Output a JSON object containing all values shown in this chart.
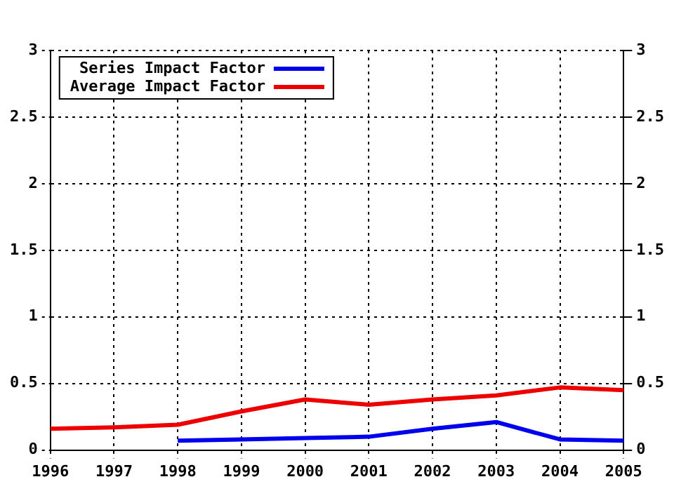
{
  "chart_data": {
    "type": "line",
    "series": [
      {
        "name": "Series Impact Factor",
        "color": "#0000ee",
        "x": [
          1998,
          1999,
          2000,
          2001,
          2002,
          2003,
          2004,
          2005
        ],
        "values": [
          0.07,
          0.08,
          0.09,
          0.1,
          0.16,
          0.21,
          0.08,
          0.07
        ]
      },
      {
        "name": "Average Impact Factor",
        "color": "#ee0000",
        "x": [
          1996,
          1997,
          1998,
          1999,
          2000,
          2001,
          2002,
          2003,
          2004,
          2005
        ],
        "values": [
          0.16,
          0.17,
          0.19,
          0.29,
          0.38,
          0.34,
          0.38,
          0.41,
          0.47,
          0.45
        ]
      }
    ],
    "xlim": [
      1996,
      2005
    ],
    "xticks": [
      1996,
      1997,
      1998,
      1999,
      2000,
      2001,
      2002,
      2003,
      2004,
      2005
    ],
    "ylim": [
      0,
      3
    ],
    "yticks": [
      0,
      0.5,
      1,
      1.5,
      2,
      2.5,
      3
    ],
    "y2lim": [
      0,
      3
    ],
    "y2ticks": [
      0,
      0.5,
      1,
      1.5,
      2,
      2.5,
      3
    ],
    "grid": true,
    "legend": "top left",
    "marker": "none",
    "line_style": "solid"
  }
}
